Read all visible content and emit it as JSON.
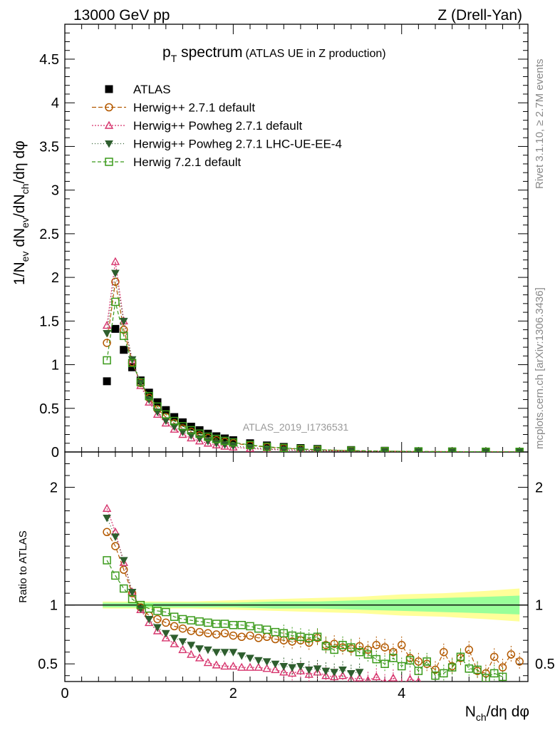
{
  "header": {
    "left": "13000 GeV pp",
    "right": "Z (Drell-Yan)"
  },
  "side_labels": {
    "rivet": "Rivet 3.1.10, ≥ 2.7M events",
    "mcplots": "mcplots.cern.ch [arXiv:1306.3436]"
  },
  "watermark": "ATLAS_2019_I1736531",
  "chart_data": [
    {
      "type": "scatter",
      "title_main": "p",
      "title_sub": "T",
      "title_rest": " spectrum",
      "title_note": "(ATLAS UE in Z production)",
      "xlabel": "N_ch/dη dφ",
      "ylabel": "1/N_ev dN_ev/dN_ch/dη dφ",
      "xlim": [
        0,
        5.5
      ],
      "ylim": [
        0,
        4.9
      ],
      "yticks": [
        "0",
        "0.5",
        "1",
        "1.5",
        "2",
        "2.5",
        "3",
        "3.5",
        "4",
        "4.5"
      ],
      "xticks": [
        "0",
        "2",
        "4"
      ],
      "legend_position": "top-left",
      "series": [
        {
          "name": "ATLAS",
          "color": "#000000",
          "marker": "filled-square",
          "x": [
            0.5,
            0.6,
            0.7,
            0.8,
            0.9,
            1.0,
            1.1,
            1.2,
            1.3,
            1.4,
            1.5,
            1.6,
            1.7,
            1.8,
            1.9,
            2.0,
            2.2,
            2.4,
            2.6,
            2.8,
            3.0,
            3.4,
            3.8,
            4.2,
            4.6,
            5.0,
            5.4
          ],
          "y": [
            0.81,
            1.41,
            1.17,
            0.97,
            0.82,
            0.68,
            0.57,
            0.48,
            0.4,
            0.34,
            0.29,
            0.25,
            0.21,
            0.18,
            0.155,
            0.135,
            0.1,
            0.075,
            0.058,
            0.045,
            0.035,
            0.022,
            0.014,
            0.009,
            0.006,
            0.004,
            0.003
          ]
        },
        {
          "name": "Herwig++ 2.7.1 default",
          "color": "#b35900",
          "marker": "open-circle",
          "dash": "6,3",
          "x": [
            0.5,
            0.6,
            0.7,
            0.8,
            0.9,
            1.0,
            1.1,
            1.2,
            1.3,
            1.4,
            1.5,
            1.6,
            1.7,
            1.8,
            1.9,
            2.0,
            2.2,
            2.4,
            2.6,
            2.8,
            3.0,
            3.4,
            3.8,
            4.2,
            4.6,
            5.0,
            5.4
          ],
          "y": [
            1.25,
            1.95,
            1.4,
            1.03,
            0.79,
            0.62,
            0.49,
            0.4,
            0.33,
            0.27,
            0.23,
            0.19,
            0.16,
            0.135,
            0.115,
            0.1,
            0.075,
            0.055,
            0.042,
            0.033,
            0.025,
            0.015,
            0.009,
            0.006,
            0.004,
            0.003,
            0.002
          ]
        },
        {
          "name": "Herwig++ Powheg 2.7.1 default",
          "color": "#d6336c",
          "marker": "open-triangle",
          "dash": "2,2",
          "x": [
            0.5,
            0.6,
            0.7,
            0.8,
            0.9,
            1.0,
            1.1,
            1.2,
            1.3,
            1.4,
            1.5,
            1.6,
            1.7,
            1.8,
            1.9,
            2.0,
            2.2,
            2.4,
            2.6,
            2.8,
            3.0,
            3.4,
            3.8,
            4.2,
            4.6,
            5.0,
            5.4
          ],
          "y": [
            1.45,
            2.18,
            1.5,
            1.05,
            0.76,
            0.57,
            0.43,
            0.33,
            0.26,
            0.2,
            0.16,
            0.125,
            0.1,
            0.08,
            0.065,
            0.055,
            0.04,
            0.03,
            0.022,
            0.017,
            0.013,
            0.008,
            0.005,
            0.003,
            0.002,
            0.001,
            0.001
          ]
        },
        {
          "name": "Herwig++ Powheg 2.7.1 LHC-UE-EE-4",
          "color": "#2e5e2e",
          "marker": "filled-triangle-down",
          "dash": "1,3",
          "x": [
            0.5,
            0.6,
            0.7,
            0.8,
            0.9,
            1.0,
            1.1,
            1.2,
            1.3,
            1.4,
            1.5,
            1.6,
            1.7,
            1.8,
            1.9,
            2.0,
            2.2,
            2.4,
            2.6,
            2.8,
            3.0,
            3.4,
            3.8,
            4.2,
            4.6,
            5.0,
            5.4
          ],
          "y": [
            1.36,
            2.05,
            1.5,
            1.06,
            0.79,
            0.6,
            0.46,
            0.36,
            0.29,
            0.23,
            0.19,
            0.155,
            0.125,
            0.1,
            0.085,
            0.07,
            0.052,
            0.038,
            0.028,
            0.021,
            0.016,
            0.01,
            0.006,
            0.004,
            0.002,
            0.002,
            0.001
          ]
        },
        {
          "name": "Herwig 7.2.1 default",
          "color": "#3a9a1a",
          "marker": "open-square",
          "dash": "5,3",
          "x": [
            0.5,
            0.6,
            0.7,
            0.8,
            0.9,
            1.0,
            1.1,
            1.2,
            1.3,
            1.4,
            1.5,
            1.6,
            1.7,
            1.8,
            1.9,
            2.0,
            2.2,
            2.4,
            2.6,
            2.8,
            3.0,
            3.4,
            3.8,
            4.2,
            4.6,
            5.0,
            5.4
          ],
          "y": [
            1.05,
            1.72,
            1.33,
            1.02,
            0.8,
            0.64,
            0.52,
            0.43,
            0.355,
            0.295,
            0.25,
            0.21,
            0.175,
            0.15,
            0.127,
            0.11,
            0.08,
            0.06,
            0.046,
            0.035,
            0.027,
            0.016,
            0.01,
            0.006,
            0.004,
            0.003,
            0.002
          ]
        }
      ]
    },
    {
      "type": "scatter",
      "ylabel": "Ratio to ATLAS",
      "xlim": [
        0,
        5.5
      ],
      "ylim": [
        0.35,
        2.3
      ],
      "yticks": [
        "0.5",
        "1",
        "2"
      ],
      "reference_line": 1,
      "band": {
        "x": [
          0.5,
          1.0,
          1.5,
          2.0,
          2.5,
          3.0,
          3.5,
          4.0,
          4.5,
          5.0,
          5.4
        ],
        "inner": [
          0.02,
          0.02,
          0.02,
          0.02,
          0.03,
          0.03,
          0.04,
          0.05,
          0.06,
          0.07,
          0.08
        ],
        "outer": [
          0.03,
          0.03,
          0.03,
          0.04,
          0.05,
          0.06,
          0.07,
          0.09,
          0.1,
          0.12,
          0.14
        ]
      },
      "series": [
        {
          "name": "Herwig++ 2.7.1 default",
          "color": "#b35900",
          "marker": "open-circle",
          "dash": "6,3",
          "x": [
            0.5,
            0.6,
            0.7,
            0.8,
            0.9,
            1.0,
            1.1,
            1.2,
            1.3,
            1.4,
            1.5,
            1.6,
            1.7,
            1.8,
            1.9,
            2.0,
            2.1,
            2.2,
            2.3,
            2.4,
            2.5,
            2.6,
            2.7,
            2.8,
            2.9,
            3.0,
            3.1,
            3.2,
            3.3,
            3.4,
            3.5,
            3.6,
            3.7,
            3.8,
            3.9,
            4.0,
            4.1,
            4.2,
            4.3,
            4.4,
            4.5,
            4.6,
            4.7,
            4.8,
            4.9,
            5.0,
            5.1,
            5.2,
            5.3,
            5.4
          ],
          "y": [
            1.62,
            1.5,
            1.3,
            1.1,
            0.98,
            0.91,
            0.88,
            0.85,
            0.82,
            0.8,
            0.78,
            0.77,
            0.76,
            0.75,
            0.76,
            0.74,
            0.73,
            0.74,
            0.72,
            0.73,
            0.71,
            0.7,
            0.69,
            0.7,
            0.68,
            0.72,
            0.66,
            0.67,
            0.64,
            0.63,
            0.65,
            0.62,
            0.66,
            0.64,
            0.6,
            0.66,
            0.55,
            0.52,
            0.5,
            0.45,
            0.6,
            0.48,
            0.55,
            0.62,
            0.44,
            0.42,
            0.56,
            0.47,
            0.58,
            0.52
          ]
        },
        {
          "name": "Herwig++ Powheg 2.7.1 default",
          "color": "#d6336c",
          "marker": "open-triangle",
          "dash": "2,2",
          "x": [
            0.5,
            0.6,
            0.7,
            0.8,
            0.9,
            1.0,
            1.1,
            1.2,
            1.3,
            1.4,
            1.5,
            1.6,
            1.7,
            1.8,
            1.9,
            2.0,
            2.1,
            2.2,
            2.3,
            2.4,
            2.5,
            2.6,
            2.7,
            2.8,
            2.9,
            3.0,
            3.1,
            3.2,
            3.3,
            3.4,
            3.5,
            3.6,
            3.7,
            3.8,
            3.9,
            4.0,
            4.1,
            4.2
          ],
          "y": [
            1.82,
            1.62,
            1.36,
            1.11,
            0.96,
            0.85,
            0.78,
            0.72,
            0.67,
            0.62,
            0.58,
            0.55,
            0.51,
            0.49,
            0.48,
            0.48,
            0.47,
            0.47,
            0.47,
            0.46,
            0.45,
            0.43,
            0.42,
            0.44,
            0.41,
            0.43,
            0.4,
            0.39,
            0.4,
            0.37,
            0.38,
            0.36,
            0.39,
            0.34,
            0.38,
            0.33,
            0.37,
            0.35
          ]
        },
        {
          "name": "Herwig++ Powheg 2.7.1 LHC-UE-EE-4",
          "color": "#2e5e2e",
          "marker": "filled-triangle-down",
          "dash": "1,3",
          "x": [
            0.5,
            0.6,
            0.7,
            0.8,
            0.9,
            1.0,
            1.1,
            1.2,
            1.3,
            1.4,
            1.5,
            1.6,
            1.7,
            1.8,
            1.9,
            2.0,
            2.1,
            2.2,
            2.3,
            2.4,
            2.5,
            2.6,
            2.7,
            2.8,
            2.9,
            3.0,
            3.1,
            3.2,
            3.3,
            3.4,
            3.5
          ],
          "y": [
            1.74,
            1.58,
            1.38,
            1.11,
            0.97,
            0.88,
            0.81,
            0.76,
            0.72,
            0.69,
            0.66,
            0.63,
            0.62,
            0.6,
            0.6,
            0.6,
            0.57,
            0.55,
            0.53,
            0.52,
            0.5,
            0.48,
            0.47,
            0.48,
            0.45,
            0.46,
            0.44,
            0.43,
            0.45,
            0.42,
            0.43
          ]
        },
        {
          "name": "Herwig 7.2.1 default",
          "color": "#3a9a1a",
          "marker": "open-square",
          "dash": "5,3",
          "x": [
            0.5,
            0.6,
            0.7,
            0.8,
            0.9,
            1.0,
            1.1,
            1.2,
            1.3,
            1.4,
            1.5,
            1.6,
            1.7,
            1.8,
            1.9,
            2.0,
            2.1,
            2.2,
            2.3,
            2.4,
            2.5,
            2.6,
            2.7,
            2.8,
            2.9,
            3.0,
            3.1,
            3.2,
            3.3,
            3.4,
            3.5,
            3.6,
            3.7,
            3.8,
            3.9,
            4.0,
            4.1,
            4.2,
            4.3,
            4.4,
            4.5,
            4.6,
            4.7,
            4.8,
            4.9,
            5.0,
            5.1,
            5.2
          ],
          "y": [
            1.38,
            1.25,
            1.14,
            1.05,
            1.0,
            0.97,
            0.95,
            0.94,
            0.9,
            0.88,
            0.87,
            0.86,
            0.85,
            0.84,
            0.84,
            0.83,
            0.83,
            0.82,
            0.8,
            0.79,
            0.77,
            0.76,
            0.74,
            0.73,
            0.72,
            0.73,
            0.65,
            0.62,
            0.66,
            0.64,
            0.6,
            0.58,
            0.54,
            0.5,
            0.55,
            0.48,
            0.53,
            0.44,
            0.52,
            0.4,
            0.42,
            0.47,
            0.56,
            0.46,
            0.45,
            0.38,
            0.42,
            0.39
          ]
        }
      ]
    }
  ]
}
